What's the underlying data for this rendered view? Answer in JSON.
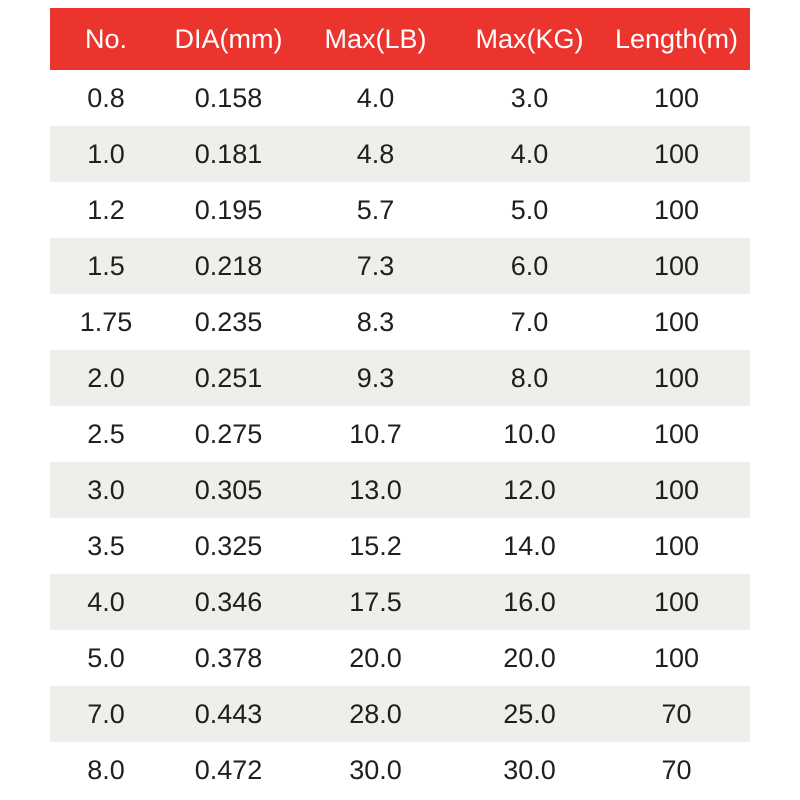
{
  "colors": {
    "header_background": "#EC342E",
    "header_text": "#FFFFFF",
    "row_alt_background": "#EFEEEB",
    "body_text": "#1F1F1F",
    "page_background": "#FFFFFF"
  },
  "chart_data": {
    "type": "table",
    "title": "",
    "columns": [
      "No.",
      "DIA(mm)",
      "Max(LB)",
      "Max(KG)",
      "Length(m)"
    ],
    "rows": [
      [
        "0.8",
        "0.158",
        "4.0",
        "3.0",
        "100"
      ],
      [
        "1.0",
        "0.181",
        "4.8",
        "4.0",
        "100"
      ],
      [
        "1.2",
        "0.195",
        "5.7",
        "5.0",
        "100"
      ],
      [
        "1.5",
        "0.218",
        "7.3",
        "6.0",
        "100"
      ],
      [
        "1.75",
        "0.235",
        "8.3",
        "7.0",
        "100"
      ],
      [
        "2.0",
        "0.251",
        "9.3",
        "8.0",
        "100"
      ],
      [
        "2.5",
        "0.275",
        "10.7",
        "10.0",
        "100"
      ],
      [
        "3.0",
        "0.305",
        "13.0",
        "12.0",
        "100"
      ],
      [
        "3.5",
        "0.325",
        "15.2",
        "14.0",
        "100"
      ],
      [
        "4.0",
        "0.346",
        "17.5",
        "16.0",
        "100"
      ],
      [
        "5.0",
        "0.378",
        "20.0",
        "20.0",
        "100"
      ],
      [
        "7.0",
        "0.443",
        "28.0",
        "25.0",
        "70"
      ],
      [
        "8.0",
        "0.472",
        "30.0",
        "30.0",
        "70"
      ]
    ]
  }
}
